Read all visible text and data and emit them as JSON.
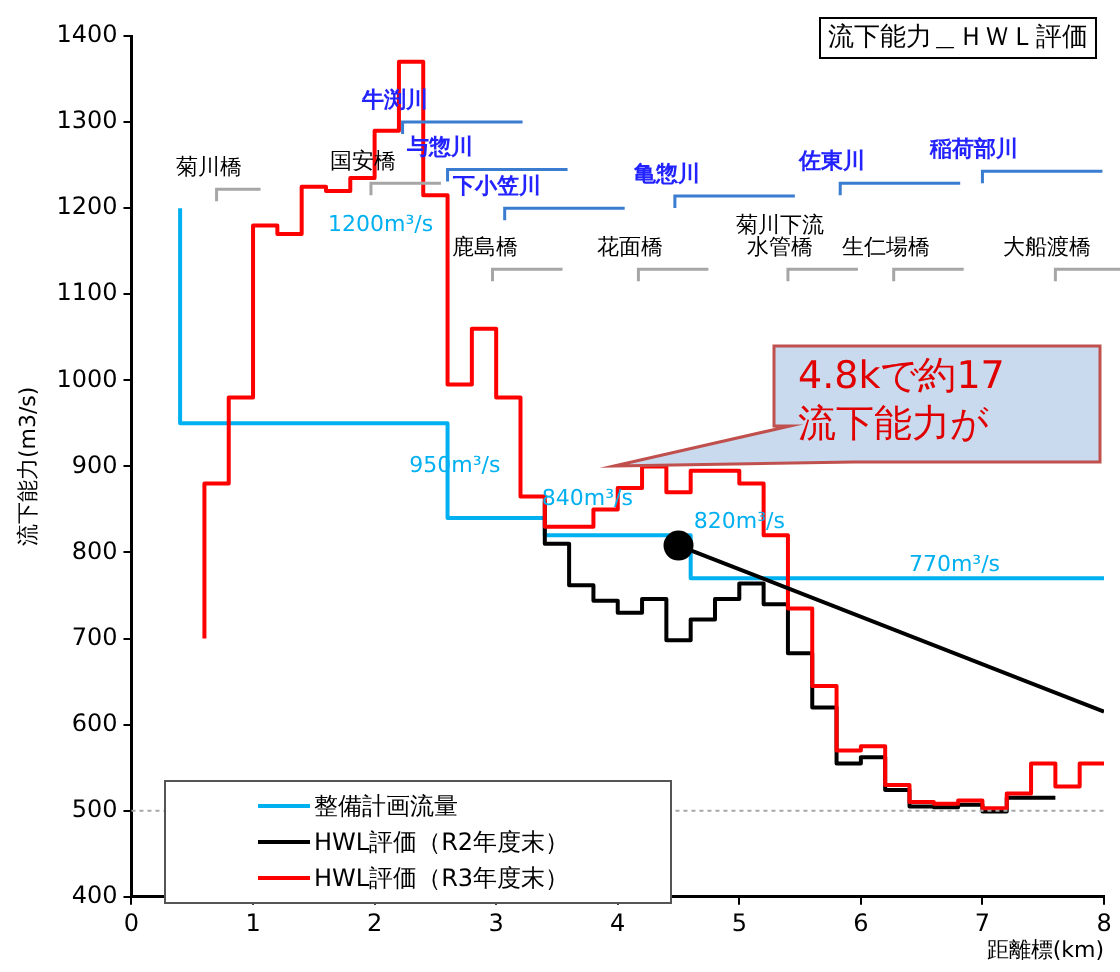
{
  "chart_data": {
    "type": "step",
    "title": "流下能力＿ＨＷＬ評価",
    "xlabel": "距離標(km)",
    "ylabel": "流下能力(m3/s)",
    "xlim": [
      0,
      8
    ],
    "xticks": [
      0,
      1,
      2,
      3,
      4,
      5,
      6,
      7,
      8
    ],
    "ylim": [
      400,
      1400
    ],
    "yticks": [
      400,
      500,
      600,
      700,
      800,
      900,
      1000,
      1100,
      1200,
      1300,
      1400
    ],
    "grid": false,
    "legend": "bottom left",
    "marker": "none",
    "line_style": "solid",
    "series": [
      {
        "name": "整備計画流量",
        "color": "#00b0f0",
        "x": [
          0.4,
          2.6,
          3.4,
          4.6,
          6.0,
          8.0
        ],
        "values": [
          1200,
          950,
          840,
          820,
          770,
          770
        ]
      },
      {
        "name": "HWL評価（R2年度末）",
        "color": "#000000",
        "x": [
          3.4,
          3.6,
          3.8,
          4.0,
          4.2,
          4.4,
          4.6,
          4.8,
          5.0,
          5.2,
          5.4,
          5.6,
          5.8,
          6.0,
          6.2,
          6.4,
          6.6,
          6.8,
          7.0,
          7.2,
          7.4,
          7.6
        ],
        "values": [
          860,
          810,
          762,
          744,
          730,
          746,
          698,
          722,
          746,
          764,
          740,
          683,
          620,
          555,
          562,
          524,
          505,
          504,
          507,
          499,
          515,
          515
        ]
      },
      {
        "name": "HWL評価（R3年度末）",
        "color": "#ff0000",
        "x": [
          0.6,
          0.8,
          1.0,
          1.2,
          1.4,
          1.6,
          1.8,
          2.0,
          2.2,
          2.4,
          2.6,
          2.8,
          3.0,
          3.2,
          3.4,
          3.6,
          3.8,
          4.0,
          4.2,
          4.4,
          4.6,
          4.8,
          5.0,
          5.2,
          5.4,
          5.6,
          5.8,
          6.0,
          6.2,
          6.4,
          6.6,
          6.8,
          7.0,
          7.2,
          7.4,
          7.6,
          7.8,
          8.0
        ],
        "values": [
          700,
          880,
          980,
          1180,
          1170,
          1225,
          1220,
          1235,
          1290,
          1370,
          1215,
          995,
          1060,
          980,
          865,
          830,
          830,
          850,
          875,
          900,
          870,
          895,
          895,
          880,
          820,
          735,
          645,
          570,
          575,
          530,
          510,
          508,
          512,
          503,
          520,
          555,
          528,
          555
        ]
      },
      {
        "type": "line",
        "color": "#000000",
        "x": [
          4.5,
          8.0
        ],
        "values": [
          808,
          615
        ]
      },
      {
        "type": "scatter",
        "color": "#000000",
        "marker": "circle",
        "x": [
          4.5
        ],
        "values": [
          808
        ]
      }
    ],
    "ref_lines": [
      {
        "axis": "y",
        "value": 500,
        "color": "#a6a6a6",
        "line_style": "dotted"
      }
    ],
    "annotations": [
      "1200m³/s",
      "950m³/s",
      "840m³/s",
      "820m³/s",
      "770m³/s",
      "菊川橋",
      "国安橋",
      "鹿島橋",
      "花面橋",
      "菊川下流水管橋",
      "生仁場橋",
      "大船渡橋",
      "牛渕川",
      "与惣川",
      "下小笠川",
      "亀惣川",
      "佐東川",
      "稲荷部川",
      "4.8kで約17\n流下能力が"
    ]
  }
}
